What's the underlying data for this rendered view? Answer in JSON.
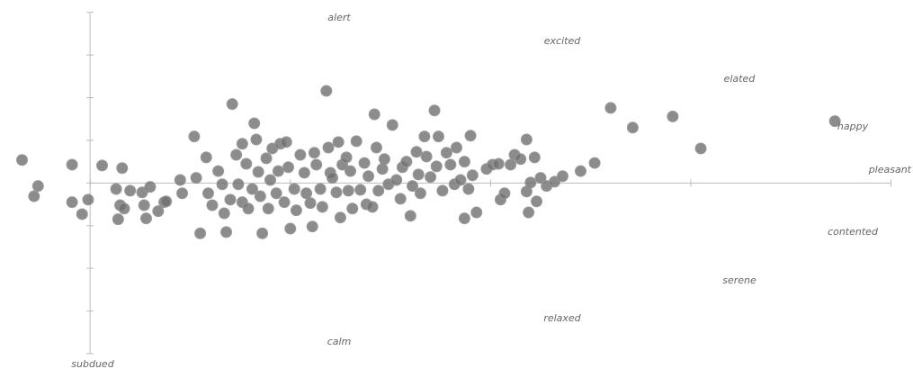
{
  "chart_data": {
    "type": "scatter",
    "annotations": [
      "alert",
      "excited",
      "elated",
      "happy",
      "pleasant",
      "contented",
      "serene",
      "relaxed",
      "calm",
      "subdued"
    ],
    "color": "#6f6f6f",
    "xlim": [
      -0.45,
      4.11
    ],
    "ylim": [
      -4.36,
      4.29
    ],
    "xticks": [
      0,
      1,
      2,
      3,
      4
    ],
    "yticks": [
      -4,
      -3,
      -2,
      -1,
      0,
      1,
      2,
      3,
      4
    ],
    "x": [
      -0.34,
      -0.28,
      -0.26,
      -0.09,
      -0.09,
      -0.04,
      -0.01,
      0.06,
      0.16,
      0.13,
      0.15,
      0.14,
      0.17,
      0.2,
      0.26,
      0.27,
      0.28,
      0.3,
      0.34,
      0.37,
      0.38,
      0.45,
      0.46,
      0.52,
      0.53,
      0.55,
      0.58,
      0.59,
      0.61,
      0.64,
      0.66,
      0.67,
      0.68,
      0.7,
      0.71,
      0.73,
      0.74,
      0.76,
      0.76,
      0.78,
      0.79,
      0.81,
      0.82,
      0.83,
      0.84,
      0.85,
      0.86,
      0.88,
      0.89,
      0.9,
      0.91,
      0.93,
      0.94,
      0.95,
      0.97,
      0.98,
      0.99,
      1.0,
      1.02,
      1.03,
      1.05,
      1.07,
      1.08,
      1.1,
      1.11,
      1.12,
      1.13,
      1.15,
      1.16,
      1.18,
      1.19,
      1.2,
      1.21,
      1.23,
      1.24,
      1.25,
      1.26,
      1.28,
      1.29,
      1.3,
      1.31,
      1.33,
      1.35,
      1.37,
      1.38,
      1.39,
      1.41,
      1.42,
      1.43,
      1.44,
      1.46,
      1.47,
      1.49,
      1.51,
      1.53,
      1.55,
      1.56,
      1.58,
      1.6,
      1.61,
      1.63,
      1.64,
      1.65,
      1.67,
      1.68,
      1.7,
      1.72,
      1.73,
      1.74,
      1.76,
      1.78,
      1.8,
      1.82,
      1.83,
      1.85,
      1.87,
      1.87,
      1.89,
      1.9,
      1.91,
      1.93,
      1.98,
      2.01,
      2.04,
      2.05,
      2.07,
      2.1,
      2.12,
      2.15,
      2.18,
      2.18,
      2.19,
      2.2,
      2.22,
      2.23,
      2.25,
      2.28,
      2.32,
      2.36,
      2.45,
      2.52,
      2.6,
      2.71,
      2.91,
      3.05,
      3.72
    ],
    "values": [
      0.54,
      -0.31,
      -0.07,
      0.43,
      -0.45,
      -0.73,
      -0.39,
      0.41,
      0.35,
      -0.14,
      -0.52,
      -0.85,
      -0.6,
      -0.18,
      -0.22,
      -0.52,
      -0.83,
      -0.09,
      -0.66,
      -0.45,
      -0.43,
      0.07,
      -0.24,
      1.09,
      0.12,
      -1.18,
      0.6,
      -0.24,
      -0.52,
      0.28,
      -0.03,
      -0.71,
      -1.15,
      -0.39,
      1.85,
      0.66,
      -0.03,
      -0.45,
      0.92,
      0.45,
      -0.6,
      -0.14,
      1.4,
      1.02,
      0.26,
      -0.31,
      -1.18,
      0.58,
      -0.6,
      0.07,
      0.81,
      -0.24,
      0.28,
      0.92,
      -0.45,
      0.96,
      0.37,
      -1.07,
      -0.14,
      -0.64,
      0.66,
      0.24,
      -0.24,
      -0.47,
      -1.02,
      0.71,
      0.43,
      -0.14,
      -0.56,
      2.16,
      0.83,
      0.24,
      0.12,
      -0.22,
      0.96,
      -0.81,
      0.43,
      0.6,
      -0.18,
      0.28,
      -0.6,
      0.98,
      -0.16,
      0.47,
      -0.5,
      0.16,
      -0.56,
      1.61,
      0.83,
      -0.18,
      0.33,
      0.56,
      -0.03,
      1.36,
      0.07,
      -0.37,
      0.37,
      0.5,
      -0.77,
      -0.07,
      0.73,
      0.2,
      -0.24,
      1.09,
      0.62,
      0.14,
      1.7,
      0.39,
      1.09,
      -0.18,
      0.71,
      0.43,
      -0.03,
      0.83,
      0.07,
      0.5,
      -0.83,
      -0.14,
      1.11,
      0.18,
      -0.69,
      0.33,
      0.43,
      0.45,
      -0.39,
      -0.24,
      0.43,
      0.66,
      0.56,
      1.02,
      -0.2,
      -0.69,
      0.01,
      0.6,
      -0.43,
      0.12,
      -0.07,
      0.03,
      0.16,
      0.28,
      0.47,
      1.76,
      1.3,
      1.56,
      0.81,
      1.45
    ]
  }
}
